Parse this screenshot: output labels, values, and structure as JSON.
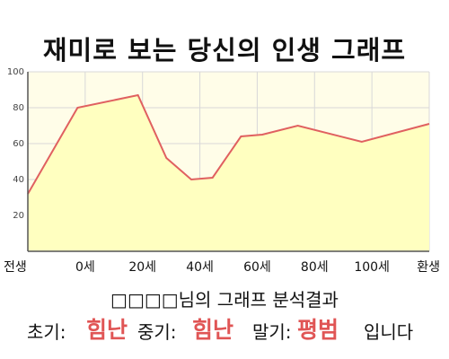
{
  "chart_data": {
    "type": "area",
    "title": "재미로 보는 당신의 인생 그래프",
    "x_labels": [
      "전생",
      "0세",
      "20세",
      "40세",
      "60세",
      "80세",
      "100세",
      "환생"
    ],
    "points": [
      {
        "x": -14,
        "y": 32
      },
      {
        "x": 0,
        "y": 80
      },
      {
        "x": 17,
        "y": 87
      },
      {
        "x": 25,
        "y": 52
      },
      {
        "x": 32,
        "y": 40
      },
      {
        "x": 38,
        "y": 41
      },
      {
        "x": 46,
        "y": 64
      },
      {
        "x": 52,
        "y": 65
      },
      {
        "x": 62,
        "y": 70
      },
      {
        "x": 80,
        "y": 61
      },
      {
        "x": 99,
        "y": 71
      }
    ],
    "xlim": [
      -14,
      99
    ],
    "ylim": [
      0,
      100
    ],
    "y_ticks": [
      "20",
      "40",
      "60",
      "80",
      "100"
    ],
    "grid": true,
    "colors": {
      "line": "#e06060",
      "fill": "#ffffc0",
      "plot_bg": "#fffde8",
      "grid": "#d8d8d8"
    }
  },
  "analysis": {
    "title": "□□□□님의 그래프 분석결과",
    "early_label": "초기:",
    "early_value": "힘난",
    "mid_label": "중기:",
    "mid_value": "힘난",
    "late_label": "말기:",
    "late_value": "평범",
    "suffix": "입니다",
    "highlight_color": "#e05555"
  }
}
